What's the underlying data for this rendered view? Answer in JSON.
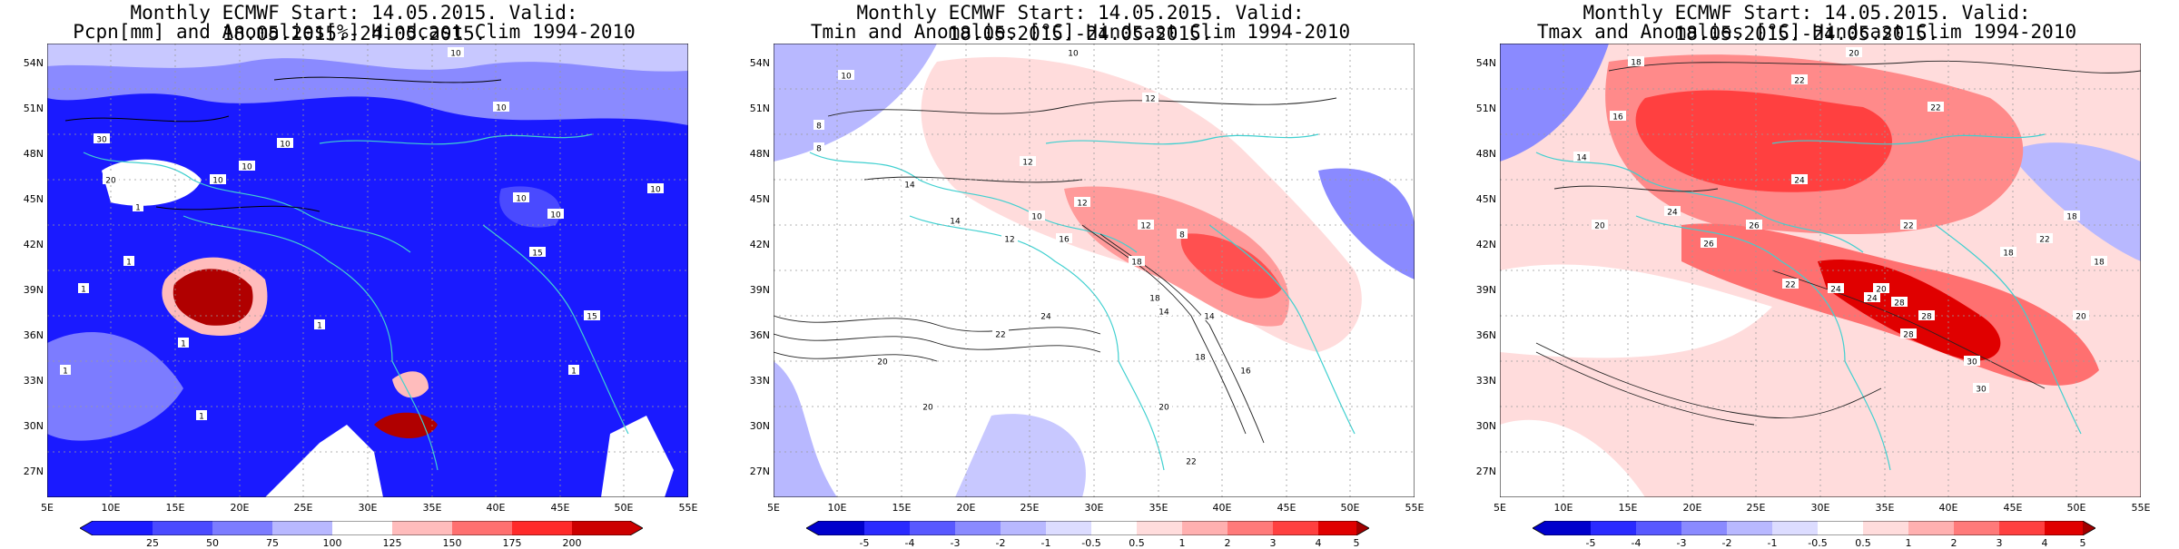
{
  "panels": [
    {
      "title_line1": "Monthly ECMWF Start: 14.05.2015. Valid: 18.05.2015.-24.05.2015.",
      "title_line2": "Pcpn[mm] and Anomalies[%] Hindcast Clim 1994-2010",
      "colorbar": {
        "labels": [
          "25",
          "50",
          "75",
          "100",
          "125",
          "150",
          "175",
          "200"
        ],
        "colors": [
          "#1a1aff",
          "#4a4aff",
          "#7c7cff",
          "#b8b8ff",
          "#ffffff",
          "#ffbcbc",
          "#ff7070",
          "#ff2a2a",
          "#cc0000"
        ]
      },
      "contour_labels": [
        "10",
        "10",
        "10",
        "10",
        "10",
        "10",
        "10",
        "10",
        "15",
        "15",
        "1",
        "1",
        "1",
        "1",
        "1",
        "1",
        "1",
        "30",
        "20",
        "1"
      ]
    },
    {
      "title_line1": "Monthly ECMWF Start: 14.05.2015. Valid: 18.05.2015.-24.05.2015.",
      "title_line2": "Tmin and Anomalies [°C] Hindcast Clim 1994-2010",
      "colorbar": {
        "labels": [
          "-5",
          "-4",
          "-3",
          "-2",
          "-1",
          "-0.5",
          "0.5",
          "1",
          "2",
          "3",
          "4",
          "5"
        ],
        "colors": [
          "#0000cc",
          "#2a2aff",
          "#5858ff",
          "#8a8aff",
          "#b8b8ff",
          "#dcdcff",
          "#ffffff",
          "#ffdcdc",
          "#ffb0b0",
          "#ff7a7a",
          "#ff4040",
          "#e00000",
          "#a00000"
        ]
      },
      "contour_labels": [
        "10",
        "10",
        "8",
        "8",
        "12",
        "12",
        "12",
        "10",
        "14",
        "14",
        "12",
        "16",
        "18",
        "18",
        "14",
        "14",
        "20",
        "20",
        "22",
        "24",
        "18",
        "16",
        "12",
        "8",
        "20",
        "22"
      ]
    },
    {
      "title_line1": "Monthly ECMWF Start: 14.05.2015. Valid: 18.05.2015.-24.05.2015.",
      "title_line2": "Tmax and Anomalies [°C] Hindcast Clim 1994-2010",
      "colorbar": {
        "labels": [
          "-5",
          "-4",
          "-3",
          "-2",
          "-1",
          "-0.5",
          "0.5",
          "1",
          "2",
          "3",
          "4",
          "5"
        ],
        "colors": [
          "#0000cc",
          "#2a2aff",
          "#5858ff",
          "#8a8aff",
          "#b8b8ff",
          "#dcdcff",
          "#ffffff",
          "#ffdcdc",
          "#ffb0b0",
          "#ff7a7a",
          "#ff4040",
          "#e00000",
          "#a00000"
        ]
      },
      "contour_labels": [
        "20",
        "18",
        "22",
        "22",
        "16",
        "14",
        "24",
        "24",
        "26",
        "20",
        "18",
        "18",
        "22",
        "24",
        "28",
        "28",
        "20",
        "24",
        "22",
        "28",
        "30",
        "30",
        "26",
        "22",
        "18",
        "20"
      ]
    }
  ],
  "axes": {
    "lat_labels": [
      "54N",
      "51N",
      "48N",
      "45N",
      "42N",
      "39N",
      "36N",
      "33N",
      "30N",
      "27N"
    ],
    "lon_labels": [
      "5E",
      "10E",
      "15E",
      "20E",
      "25E",
      "30E",
      "35E",
      "40E",
      "45E",
      "50E",
      "55E"
    ]
  }
}
